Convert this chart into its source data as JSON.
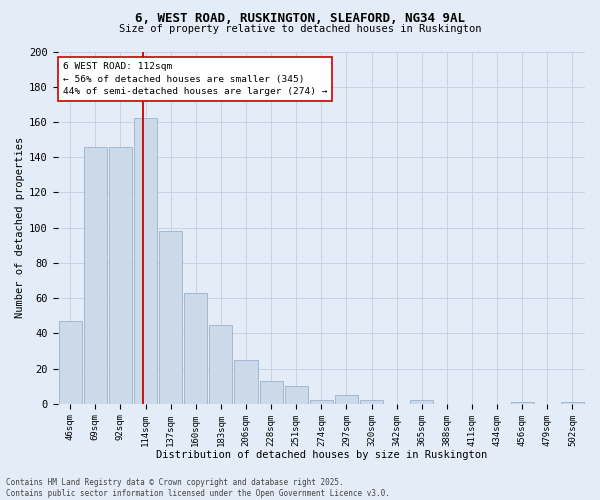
{
  "title_line1": "6, WEST ROAD, RUSKINGTON, SLEAFORD, NG34 9AL",
  "title_line2": "Size of property relative to detached houses in Ruskington",
  "xlabel": "Distribution of detached houses by size in Ruskington",
  "ylabel": "Number of detached properties",
  "categories": [
    "46sqm",
    "69sqm",
    "92sqm",
    "114sqm",
    "137sqm",
    "160sqm",
    "183sqm",
    "206sqm",
    "228sqm",
    "251sqm",
    "274sqm",
    "297sqm",
    "320sqm",
    "342sqm",
    "365sqm",
    "388sqm",
    "411sqm",
    "434sqm",
    "456sqm",
    "479sqm",
    "502sqm"
  ],
  "values": [
    47,
    146,
    146,
    162,
    98,
    63,
    45,
    25,
    13,
    10,
    2,
    5,
    2,
    0,
    2,
    0,
    0,
    0,
    1,
    0,
    1
  ],
  "bar_color": "#ccd9e8",
  "bar_edge_color": "#9ab0cc",
  "property_label": "6 WEST ROAD: 112sqm",
  "annotation_line1": "← 56% of detached houses are smaller (345)",
  "annotation_line2": "44% of semi-detached houses are larger (274) →",
  "vline_color": "#cc0000",
  "vline_x": 2.88,
  "annotation_box_facecolor": "#ffffff",
  "annotation_box_edgecolor": "#cc0000",
  "ylim": [
    0,
    200
  ],
  "yticks": [
    0,
    20,
    40,
    60,
    80,
    100,
    120,
    140,
    160,
    180,
    200
  ],
  "grid_color": "#c8d4e4",
  "background_color": "#e4ecf7",
  "footer_line1": "Contains HM Land Registry data © Crown copyright and database right 2025.",
  "footer_line2": "Contains public sector information licensed under the Open Government Licence v3.0."
}
